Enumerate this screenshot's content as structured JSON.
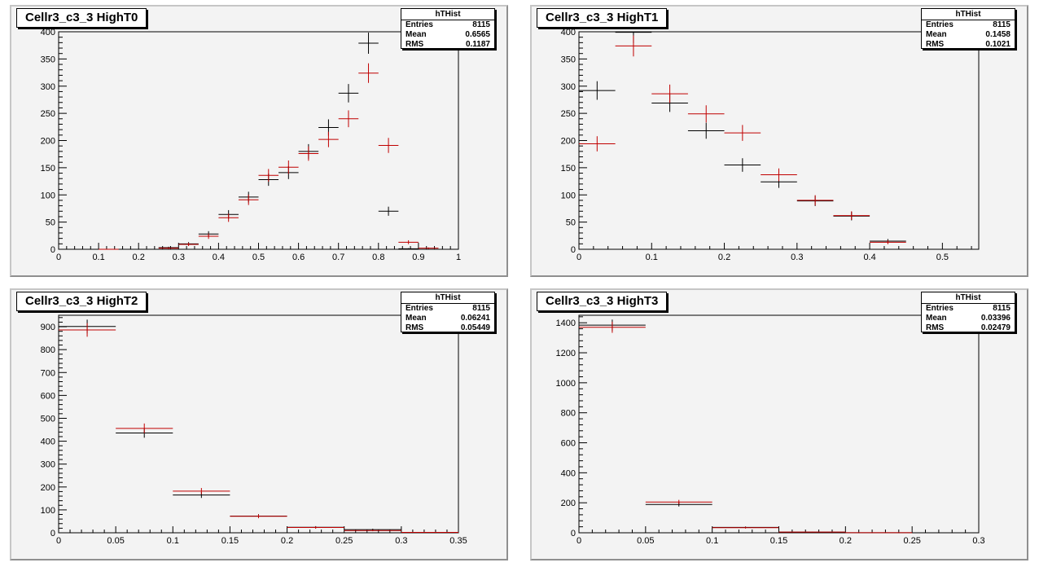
{
  "colors": {
    "series_black": "#000000",
    "series_red": "#c00000",
    "frame_bg": "#f3f3f3"
  },
  "chart_data": [
    {
      "type": "scatter",
      "title": "Cellr3_c3_3 HighT0",
      "stats": {
        "name": "hTHist",
        "entries_label": "Entries",
        "entries": "8115",
        "mean_label": "Mean",
        "mean": "0.6565",
        "rms_label": "RMS",
        "rms": "0.1187"
      },
      "xlim": [
        0,
        1
      ],
      "ylim": [
        0,
        400
      ],
      "xticks": [
        0,
        0.1,
        0.2,
        0.3,
        0.4,
        0.5,
        0.6,
        0.7,
        0.8,
        0.9,
        1
      ],
      "xtick_labels": [
        "0",
        "0.1",
        "0.2",
        "0.3",
        "0.4",
        "0.5",
        "0.6",
        "0.7",
        "0.8",
        "0.9",
        "1"
      ],
      "yticks": [
        0,
        50,
        100,
        150,
        200,
        250,
        300,
        350,
        400
      ],
      "ytick_labels": [
        "0",
        "50",
        "100",
        "150",
        "200",
        "250",
        "300",
        "350",
        "400"
      ],
      "bin_width": 0.05,
      "series": [
        {
          "color": "black",
          "x": [
            0.125,
            0.275,
            0.325,
            0.375,
            0.425,
            0.475,
            0.525,
            0.575,
            0.625,
            0.675,
            0.725,
            0.775,
            0.825,
            0.875,
            0.925
          ],
          "y": [
            0,
            3,
            10,
            28,
            64,
            96,
            128,
            141,
            180,
            224,
            287,
            379,
            70,
            1,
            0
          ]
        },
        {
          "color": "red",
          "x": [
            0.125,
            0.275,
            0.325,
            0.375,
            0.425,
            0.475,
            0.525,
            0.575,
            0.625,
            0.675,
            0.725,
            0.775,
            0.825,
            0.875,
            0.925
          ],
          "y": [
            0,
            2,
            9,
            24,
            58,
            91,
            136,
            151,
            176,
            202,
            240,
            324,
            191,
            13,
            2
          ]
        }
      ]
    },
    {
      "type": "scatter",
      "title": "Cellr3_c3_3 HighT1",
      "stats": {
        "name": "hTHist",
        "entries_label": "Entries",
        "entries": "8115",
        "mean_label": "Mean",
        "mean": "0.1458",
        "rms_label": "RMS",
        "rms": "0.1021"
      },
      "xlim": [
        0,
        0.55
      ],
      "ylim": [
        0,
        400
      ],
      "xticks": [
        0,
        0.1,
        0.2,
        0.3,
        0.4,
        0.5
      ],
      "xtick_labels": [
        "0",
        "0.1",
        "0.2",
        "0.3",
        "0.4",
        "0.5"
      ],
      "yticks": [
        0,
        50,
        100,
        150,
        200,
        250,
        300,
        350,
        400
      ],
      "ytick_labels": [
        "0",
        "50",
        "100",
        "150",
        "200",
        "250",
        "300",
        "350",
        "400"
      ],
      "bin_width": 0.05,
      "series": [
        {
          "color": "black",
          "x": [
            0.025,
            0.075,
            0.125,
            0.175,
            0.225,
            0.275,
            0.325,
            0.375,
            0.425
          ],
          "y": [
            292,
            399,
            269,
            218,
            155,
            124,
            89,
            61,
            15
          ]
        },
        {
          "color": "red",
          "x": [
            0.025,
            0.075,
            0.125,
            0.175,
            0.225,
            0.275,
            0.325,
            0.375,
            0.425
          ],
          "y": [
            194,
            374,
            286,
            249,
            214,
            137,
            90,
            62,
            13
          ]
        }
      ]
    },
    {
      "type": "scatter",
      "title": "Cellr3_c3_3 HighT2",
      "stats": {
        "name": "hTHist",
        "entries_label": "Entries",
        "entries": "8115",
        "mean_label": "Mean",
        "mean": "0.06241",
        "rms_label": "RMS",
        "rms": "0.05449"
      },
      "xlim": [
        0,
        0.35
      ],
      "ylim": [
        0,
        950
      ],
      "xticks": [
        0,
        0.05,
        0.1,
        0.15,
        0.2,
        0.25,
        0.3,
        0.35
      ],
      "xtick_labels": [
        "0",
        "0.05",
        "0.1",
        "0.15",
        "0.2",
        "0.25",
        "0.3",
        "0.35"
      ],
      "yticks": [
        0,
        100,
        200,
        300,
        400,
        500,
        600,
        700,
        800,
        900
      ],
      "ytick_labels": [
        "0",
        "100",
        "200",
        "300",
        "400",
        "500",
        "600",
        "700",
        "800",
        "900"
      ],
      "bin_width": 0.05,
      "series": [
        {
          "color": "black",
          "x": [
            0.025,
            0.075,
            0.125,
            0.175,
            0.225,
            0.275,
            0.325
          ],
          "y": [
            901,
            436,
            165,
            73,
            24,
            14,
            2
          ]
        },
        {
          "color": "red",
          "x": [
            0.025,
            0.075,
            0.125,
            0.175,
            0.225,
            0.275,
            0.325
          ],
          "y": [
            886,
            456,
            182,
            72,
            23,
            10,
            2
          ]
        }
      ]
    },
    {
      "type": "scatter",
      "title": "Cellr3_c3_3 HighT3",
      "stats": {
        "name": "hTHist",
        "entries_label": "Entries",
        "entries": "8115",
        "mean_label": "Mean",
        "mean": "0.03396",
        "rms_label": "RMS",
        "rms": "0.02479"
      },
      "xlim": [
        0,
        0.3
      ],
      "ylim": [
        0,
        1450
      ],
      "xticks": [
        0,
        0.05,
        0.1,
        0.15,
        0.2,
        0.25,
        0.3
      ],
      "xtick_labels": [
        "0",
        "0.05",
        "0.1",
        "0.15",
        "0.2",
        "0.25",
        "0.3"
      ],
      "yticks": [
        0,
        200,
        400,
        600,
        800,
        1000,
        1200,
        1400
      ],
      "ytick_labels": [
        "0",
        "200",
        "400",
        "600",
        "800",
        "1000",
        "1200",
        "1400"
      ],
      "bin_width": 0.05,
      "series": [
        {
          "color": "black",
          "x": [
            0.025,
            0.075,
            0.125,
            0.175,
            0.225
          ],
          "y": [
            1384,
            189,
            36,
            4,
            1
          ]
        },
        {
          "color": "red",
          "x": [
            0.025,
            0.075,
            0.125,
            0.175,
            0.225
          ],
          "y": [
            1370,
            205,
            34,
            5,
            1
          ]
        }
      ]
    }
  ]
}
